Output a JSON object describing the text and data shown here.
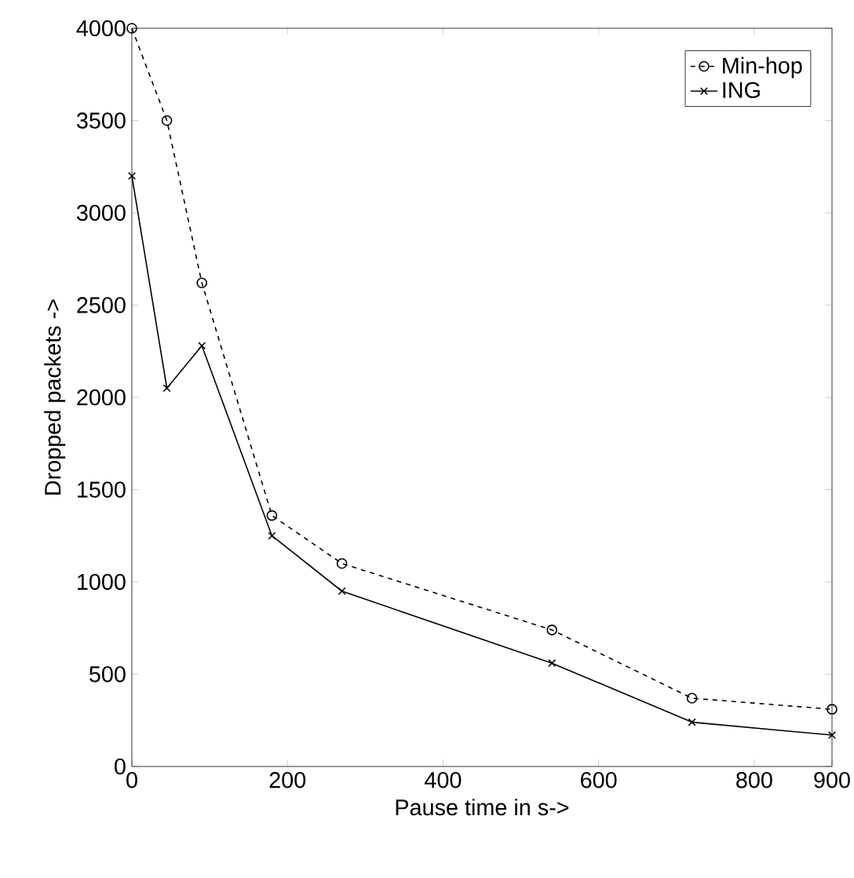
{
  "chart_data": {
    "type": "line",
    "xlabel": "Pause time in s->",
    "ylabel": "Dropped packets ->",
    "x": [
      0,
      45,
      90,
      180,
      270,
      540,
      720,
      900
    ],
    "series": [
      {
        "name": "Min-hop",
        "color": "#000000",
        "marker": "circle",
        "line_style": "dashed",
        "values": [
          4000,
          3500,
          2620,
          1360,
          1100,
          740,
          370,
          310
        ]
      },
      {
        "name": "ING",
        "color": "#000000",
        "marker": "cross",
        "line_style": "solid",
        "values": [
          3200,
          2050,
          2280,
          1250,
          950,
          560,
          240,
          170
        ]
      }
    ],
    "xlim": [
      0,
      900
    ],
    "xticks": [
      0,
      200,
      400,
      600,
      800,
      900
    ],
    "ylim": [
      0,
      4000
    ],
    "yticks": [
      0,
      500,
      1000,
      1500,
      2000,
      2500,
      3000,
      3500,
      4000
    ],
    "grid": false,
    "legend": "top right"
  }
}
